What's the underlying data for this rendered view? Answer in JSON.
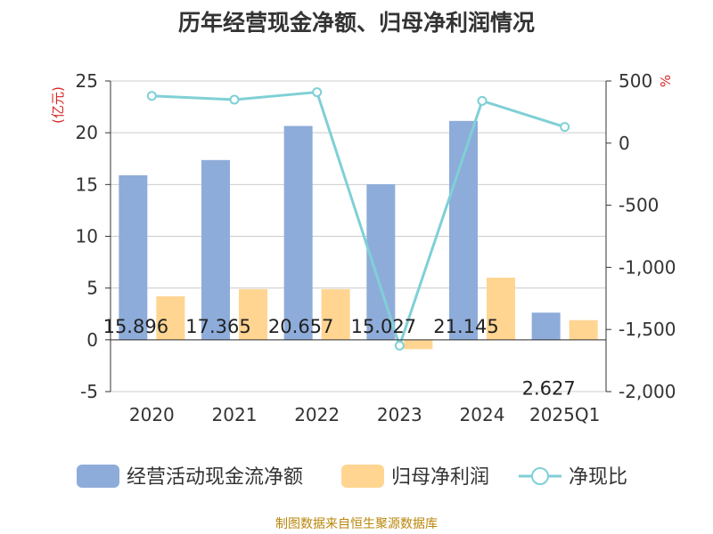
{
  "chart_data": {
    "type": "bar",
    "title": "历年经营现金净额、归母净利润情况",
    "source": "制图数据来自恒生聚源数据库",
    "categories": [
      "2020",
      "2021",
      "2022",
      "2023",
      "2024",
      "2025Q1"
    ],
    "y_left": {
      "unit_label": "(亿元)",
      "min": -5,
      "max": 25,
      "ticks": [
        "-5",
        "0",
        "5",
        "10",
        "15",
        "20",
        "25"
      ]
    },
    "y_right": {
      "unit_label": "%",
      "min": -2000,
      "max": 500,
      "ticks": [
        "-2,000",
        "-1,500",
        "-1,000",
        "-500",
        "0",
        "500"
      ]
    },
    "grid": true,
    "legend_position": "bottom",
    "series": [
      {
        "name": "经营活动现金流净额",
        "type": "bar",
        "axis": "left",
        "color": "#8eacda",
        "values": [
          15.896,
          17.365,
          20.657,
          15.027,
          21.145,
          2.627
        ],
        "labels": [
          "15.896",
          "17.365",
          "20.657",
          "15.027",
          "21.145",
          "2.627"
        ]
      },
      {
        "name": "归母净利润",
        "type": "bar",
        "axis": "left",
        "color": "#ffd591",
        "values": [
          4.2,
          4.9,
          4.9,
          -0.9,
          6.0,
          1.9
        ]
      },
      {
        "name": "净现比",
        "type": "line",
        "axis": "right",
        "color": "#7fd0d6",
        "values": [
          380,
          350,
          410,
          -1630,
          340,
          130
        ]
      }
    ]
  }
}
